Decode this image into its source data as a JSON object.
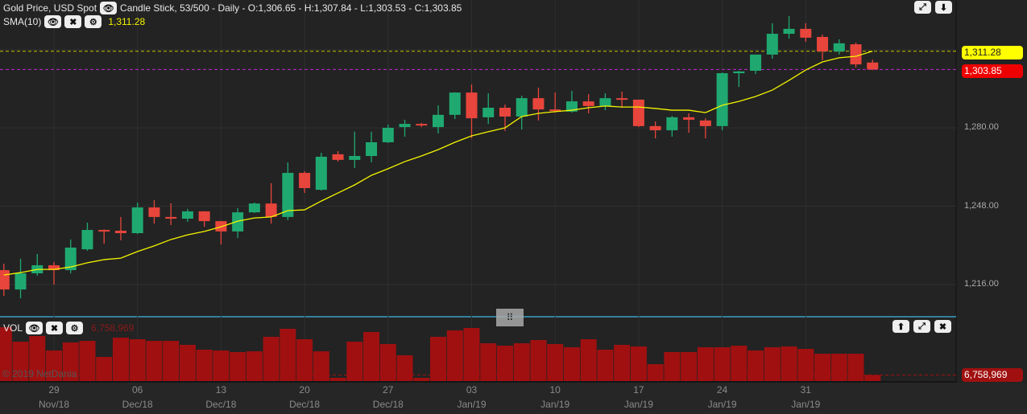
{
  "header": {
    "symbol": "Gold Price, USD Spot",
    "info": "Candle Stick, 53/500 - Daily - O:1,306.65 - H:1,307.84 - L:1,303.53 - C:1,303.85",
    "sma_label": "SMA(10)",
    "sma_value": "1,311.28"
  },
  "volume_panel": {
    "label": "VOL",
    "value": "6,758,969",
    "tag": "6,758,969"
  },
  "price_tags": {
    "sma": "1,311.28",
    "last": "1,303.85"
  },
  "copyright": "© 2019 NetDania",
  "colors": {
    "up": "#1fa971",
    "down": "#e8453c",
    "sma": "#f4f400",
    "last_line": "#c026d3",
    "volume": "#a01010",
    "bg": "#232323"
  },
  "chart_data": {
    "type": "candlestick",
    "title": "Gold Price, USD Spot",
    "ylim": [
      1206,
      1329
    ],
    "y_ticks": [
      "1,216.00",
      "1,248.00",
      "1,280.00"
    ],
    "y_tick_values": [
      1216,
      1248,
      1280
    ],
    "x_labels": [
      {
        "day": "29",
        "month": "Nov/18",
        "index": 3
      },
      {
        "day": "06",
        "month": "Dec/18",
        "index": 8
      },
      {
        "day": "13",
        "month": "Dec/18",
        "index": 13
      },
      {
        "day": "20",
        "month": "Dec/18",
        "index": 18
      },
      {
        "day": "27",
        "month": "Dec/18",
        "index": 23
      },
      {
        "day": "03",
        "month": "Jan/19",
        "index": 28
      },
      {
        "day": "10",
        "month": "Jan/19",
        "index": 33
      },
      {
        "day": "17",
        "month": "Jan/19",
        "index": 38
      },
      {
        "day": "24",
        "month": "Jan/19",
        "index": 43
      },
      {
        "day": "31",
        "month": "Jan/19",
        "index": 48
      }
    ],
    "ohlc": [
      [
        1221.9,
        1224.5,
        1211.4,
        1214.0
      ],
      [
        1214.0,
        1226.5,
        1210.4,
        1220.6
      ],
      [
        1220.6,
        1228.5,
        1219.6,
        1223.9
      ],
      [
        1223.9,
        1225.2,
        1216.0,
        1221.9
      ],
      [
        1221.9,
        1234.4,
        1220.6,
        1231.1
      ],
      [
        1230.4,
        1241.3,
        1229.8,
        1238.3
      ],
      [
        1238.3,
        1238.5,
        1232.7,
        1237.7
      ],
      [
        1238.0,
        1243.6,
        1234.1,
        1237.0
      ],
      [
        1237.0,
        1249.5,
        1236.7,
        1247.5
      ],
      [
        1247.5,
        1250.5,
        1240.9,
        1243.6
      ],
      [
        1243.6,
        1249.2,
        1240.3,
        1242.9
      ],
      [
        1242.9,
        1246.9,
        1241.6,
        1245.9
      ],
      [
        1245.9,
        1246.0,
        1239.6,
        1241.9
      ],
      [
        1241.9,
        1242.0,
        1232.4,
        1237.7
      ],
      [
        1237.7,
        1247.2,
        1235.0,
        1245.5
      ],
      [
        1245.5,
        1249.5,
        1245.2,
        1249.1
      ],
      [
        1249.1,
        1257.4,
        1240.9,
        1243.6
      ],
      [
        1243.6,
        1265.9,
        1242.3,
        1261.6
      ],
      [
        1261.6,
        1262.3,
        1253.4,
        1255.4
      ],
      [
        1254.7,
        1269.8,
        1254.4,
        1268.2
      ],
      [
        1269.2,
        1270.5,
        1266.2,
        1266.9
      ],
      [
        1266.9,
        1278.4,
        1263.6,
        1268.5
      ],
      [
        1268.5,
        1278.4,
        1265.9,
        1274.1
      ],
      [
        1274.1,
        1281.3,
        1273.8,
        1280.0
      ],
      [
        1280.3,
        1283.3,
        1276.4,
        1281.6
      ],
      [
        1281.6,
        1282.0,
        1280.3,
        1281.0
      ],
      [
        1280.3,
        1289.2,
        1277.7,
        1285.3
      ],
      [
        1285.3,
        1294.5,
        1283.6,
        1294.4
      ],
      [
        1294.4,
        1297.7,
        1275.7,
        1283.9
      ],
      [
        1284.3,
        1294.1,
        1281.6,
        1288.2
      ],
      [
        1288.2,
        1289.5,
        1278.7,
        1284.6
      ],
      [
        1284.6,
        1293.1,
        1279.3,
        1292.1
      ],
      [
        1292.1,
        1296.4,
        1283.0,
        1287.5
      ],
      [
        1287.5,
        1294.4,
        1286.2,
        1286.9
      ],
      [
        1286.6,
        1295.1,
        1286.2,
        1290.8
      ],
      [
        1290.8,
        1293.8,
        1285.9,
        1288.9
      ],
      [
        1288.9,
        1294.1,
        1287.2,
        1292.1
      ],
      [
        1292.1,
        1294.8,
        1288.2,
        1291.5
      ],
      [
        1291.5,
        1291.5,
        1280.3,
        1280.7
      ],
      [
        1280.7,
        1282.6,
        1275.7,
        1279.0
      ],
      [
        1279.0,
        1284.9,
        1276.4,
        1284.3
      ],
      [
        1284.3,
        1285.9,
        1278.0,
        1283.3
      ],
      [
        1283.0,
        1283.9,
        1275.7,
        1280.7
      ],
      [
        1280.7,
        1302.6,
        1279.0,
        1302.3
      ],
      [
        1302.3,
        1303.3,
        1296.7,
        1303.0
      ],
      [
        1303.3,
        1309.9,
        1302.0,
        1309.9
      ],
      [
        1309.9,
        1322.7,
        1308.2,
        1318.4
      ],
      [
        1318.4,
        1325.6,
        1316.4,
        1320.4
      ],
      [
        1320.4,
        1322.7,
        1315.1,
        1316.8
      ],
      [
        1317.1,
        1318.1,
        1307.6,
        1311.2
      ],
      [
        1311.2,
        1316.1,
        1309.9,
        1314.5
      ],
      [
        1314.1,
        1314.8,
        1304.6,
        1305.9
      ],
      [
        1306.65,
        1307.84,
        1303.53,
        1303.85
      ]
    ],
    "sma10": [
      1219.9,
      1220.9,
      1222.2,
      1222.2,
      1223.2,
      1224.9,
      1226.2,
      1226.8,
      1229.5,
      1231.8,
      1234.4,
      1236.3,
      1237.7,
      1239.6,
      1241.9,
      1243.2,
      1243.6,
      1246.2,
      1246.5,
      1250.1,
      1253.4,
      1256.7,
      1260.6,
      1263.3,
      1266.2,
      1268.5,
      1271.1,
      1274.1,
      1276.7,
      1278.4,
      1280.0,
      1284.6,
      1285.9,
      1286.6,
      1287.2,
      1288.2,
      1288.9,
      1288.5,
      1288.5,
      1287.9,
      1287.2,
      1287.2,
      1286.2,
      1289.2,
      1290.8,
      1292.8,
      1295.4,
      1299.4,
      1303.6,
      1306.9,
      1308.6,
      1309.2,
      1311.28
    ],
    "volume_millions": [
      60.3,
      44.1,
      50.4,
      34.2,
      43.2,
      45.0,
      27.0,
      48.6,
      46.8,
      45.0,
      45.0,
      40.5,
      35.1,
      34.2,
      32.4,
      33.3,
      49.5,
      58.5,
      46.8,
      33.3,
      3.6,
      44.1,
      54.9,
      41.4,
      28.8,
      3.6,
      49.5,
      56.7,
      59.4,
      42.3,
      39.6,
      42.3,
      45.9,
      41.4,
      37.8,
      46.8,
      35.1,
      40.5,
      38.7,
      18.9,
      32.4,
      32.4,
      37.8,
      37.8,
      39.6,
      34.2,
      37.8,
      38.7,
      36.0,
      30.6,
      30.6,
      30.6,
      6.758969
    ],
    "sma_level": 1311.28,
    "last_level": 1303.85
  }
}
